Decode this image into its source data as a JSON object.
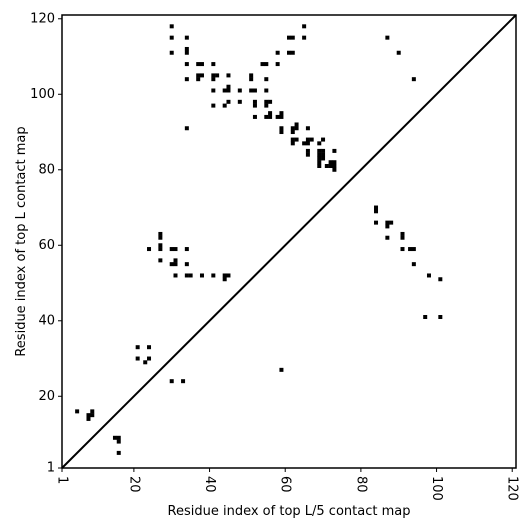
{
  "chart_data": {
    "type": "scatter",
    "title": "",
    "xlabel": "Residue index of top L/5 contact map",
    "ylabel": "Residue index of top L contact map",
    "xlim": [
      1,
      121
    ],
    "ylim": [
      1,
      121
    ],
    "x_ticks": [
      1,
      20,
      40,
      60,
      80,
      100,
      120
    ],
    "y_ticks": [
      1,
      20,
      40,
      60,
      80,
      100,
      120
    ],
    "x_tick_labels": [
      "1",
      "20",
      "40",
      "60",
      "80",
      "100",
      "120"
    ],
    "y_tick_labels": [
      "1",
      "20",
      "40",
      "60",
      "80",
      "100",
      "120"
    ],
    "x_tick_label_rotation": "vertical",
    "grid": false,
    "diagonal_line": true,
    "marker": "square",
    "colors": {
      "points": "#000000",
      "axes": "#000000",
      "background": "#ffffff"
    },
    "points": [
      [
        5,
        16
      ],
      [
        8,
        15
      ],
      [
        8,
        14
      ],
      [
        9,
        15
      ],
      [
        9,
        16
      ],
      [
        15,
        9
      ],
      [
        16,
        9
      ],
      [
        16,
        8
      ],
      [
        16,
        5
      ],
      [
        21,
        33
      ],
      [
        21,
        30
      ],
      [
        23,
        29
      ],
      [
        24,
        30
      ],
      [
        24,
        33
      ],
      [
        24,
        59
      ],
      [
        27,
        63
      ],
      [
        27,
        62
      ],
      [
        27,
        60
      ],
      [
        27,
        59
      ],
      [
        27,
        56
      ],
      [
        30,
        118
      ],
      [
        30,
        115
      ],
      [
        30,
        111
      ],
      [
        30,
        59
      ],
      [
        30,
        55
      ],
      [
        30,
        24
      ],
      [
        31,
        59
      ],
      [
        31,
        56
      ],
      [
        31,
        55
      ],
      [
        31,
        52
      ],
      [
        33,
        24
      ],
      [
        34,
        115
      ],
      [
        34,
        112
      ],
      [
        34,
        111
      ],
      [
        34,
        108
      ],
      [
        34,
        104
      ],
      [
        34,
        91
      ],
      [
        34,
        59
      ],
      [
        34,
        55
      ],
      [
        34,
        52
      ],
      [
        35,
        52
      ],
      [
        37,
        108
      ],
      [
        37,
        105
      ],
      [
        37,
        104
      ],
      [
        38,
        108
      ],
      [
        38,
        105
      ],
      [
        38,
        52
      ],
      [
        41,
        108
      ],
      [
        41,
        105
      ],
      [
        41,
        104
      ],
      [
        41,
        101
      ],
      [
        41,
        97
      ],
      [
        41,
        52
      ],
      [
        42,
        105
      ],
      [
        44,
        101
      ],
      [
        44,
        97
      ],
      [
        44,
        52
      ],
      [
        44,
        51
      ],
      [
        45,
        105
      ],
      [
        45,
        102
      ],
      [
        45,
        101
      ],
      [
        45,
        98
      ],
      [
        45,
        52
      ],
      [
        48,
        101
      ],
      [
        48,
        98
      ],
      [
        51,
        105
      ],
      [
        51,
        104
      ],
      [
        51,
        101
      ],
      [
        52,
        101
      ],
      [
        52,
        98
      ],
      [
        52,
        97
      ],
      [
        52,
        94
      ],
      [
        54,
        108
      ],
      [
        55,
        108
      ],
      [
        55,
        104
      ],
      [
        55,
        101
      ],
      [
        55,
        98
      ],
      [
        55,
        97
      ],
      [
        55,
        94
      ],
      [
        56,
        98
      ],
      [
        56,
        95
      ],
      [
        56,
        94
      ],
      [
        58,
        111
      ],
      [
        58,
        108
      ],
      [
        58,
        94
      ],
      [
        59,
        95
      ],
      [
        59,
        94
      ],
      [
        59,
        91
      ],
      [
        59,
        90
      ],
      [
        59,
        27
      ],
      [
        61,
        115
      ],
      [
        61,
        111
      ],
      [
        62,
        115
      ],
      [
        62,
        111
      ],
      [
        62,
        91
      ],
      [
        62,
        88
      ],
      [
        62,
        87
      ],
      [
        62,
        90
      ],
      [
        63,
        92
      ],
      [
        63,
        91
      ],
      [
        63,
        88
      ],
      [
        65,
        118
      ],
      [
        65,
        115
      ],
      [
        65,
        87
      ],
      [
        66,
        91
      ],
      [
        66,
        88
      ],
      [
        66,
        87
      ],
      [
        66,
        85
      ],
      [
        66,
        84
      ],
      [
        67,
        88
      ],
      [
        69,
        87
      ],
      [
        69,
        85
      ],
      [
        69,
        84
      ],
      [
        69,
        83
      ],
      [
        69,
        82
      ],
      [
        69,
        81
      ],
      [
        70,
        88
      ],
      [
        70,
        85
      ],
      [
        70,
        84
      ],
      [
        70,
        83
      ],
      [
        71,
        81
      ],
      [
        72,
        82
      ],
      [
        72,
        81
      ],
      [
        73,
        82
      ],
      [
        73,
        81
      ],
      [
        73,
        80
      ],
      [
        73,
        85
      ],
      [
        84,
        70
      ],
      [
        84,
        69
      ],
      [
        84,
        66
      ],
      [
        87,
        115
      ],
      [
        87,
        66
      ],
      [
        87,
        65
      ],
      [
        87,
        62
      ],
      [
        88,
        66
      ],
      [
        90,
        111
      ],
      [
        91,
        63
      ],
      [
        91,
        62
      ],
      [
        91,
        59
      ],
      [
        93,
        59
      ],
      [
        94,
        104
      ],
      [
        94,
        59
      ],
      [
        94,
        55
      ],
      [
        97,
        41
      ],
      [
        98,
        52
      ],
      [
        101,
        51
      ],
      [
        101,
        41
      ]
    ]
  }
}
